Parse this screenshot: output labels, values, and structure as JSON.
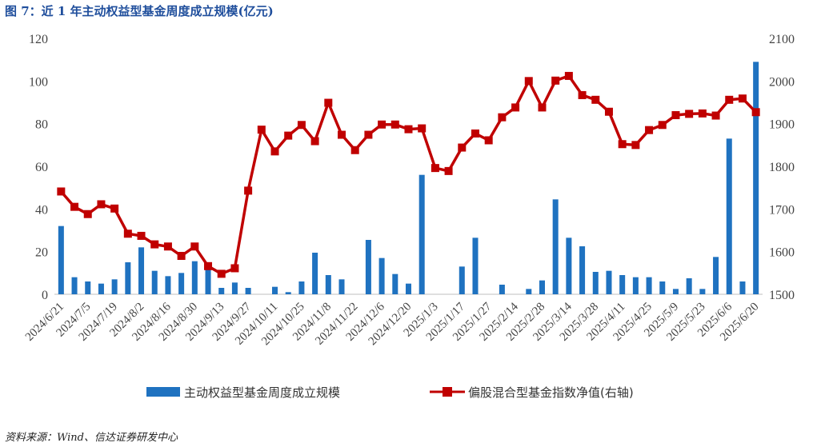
{
  "title": "图 7：近 1 年主动权益型基金周度成立规模(亿元)",
  "source": "资料来源：Wind、信达证券研发中心",
  "colors": {
    "bar": "#1f72c0",
    "line": "#c00000",
    "title": "#1f4e9c"
  },
  "chart_data": {
    "type": "bar+line",
    "x_tick_labels": [
      "2024/6/21",
      "2024/7/5",
      "2024/7/19",
      "2024/8/2",
      "2024/8/16",
      "2024/8/30",
      "2024/9/13",
      "2024/9/27",
      "2024/10/11",
      "2024/10/25",
      "2024/11/8",
      "2024/11/22",
      "2024/12/6",
      "2024/12/20",
      "2025/1/3",
      "2025/1/17",
      "2025/1/27",
      "2025/2/14",
      "2025/2/28",
      "2025/3/14",
      "2025/3/28",
      "2025/4/11",
      "2025/4/25",
      "2025/5/9",
      "2025/5/23",
      "2025/6/6",
      "2025/6/20"
    ],
    "left_axis": {
      "min": 0,
      "max": 120,
      "ticks": [
        0,
        20,
        40,
        60,
        80,
        100,
        120
      ]
    },
    "right_axis": {
      "min": 1500,
      "max": 2100,
      "ticks": [
        1500,
        1600,
        1700,
        1800,
        1900,
        2000,
        2100
      ]
    },
    "legend": [
      "主动权益型基金周度成立规模",
      "偏股混合型基金指数净值(右轴)"
    ],
    "legend_position": "bottom",
    "bars": [
      32,
      8,
      6,
      5,
      7,
      15,
      22,
      11,
      8.5,
      10,
      15.5,
      11.5,
      3,
      5.5,
      3,
      0,
      3.5,
      1,
      6,
      19.5,
      9,
      7,
      0,
      25.5,
      17,
      9.5,
      5,
      56,
      0,
      0,
      13,
      26.5,
      0,
      4.5,
      0,
      2.5,
      6.5,
      44.5,
      26.5,
      22.5,
      10.5,
      11,
      9,
      8,
      8,
      6,
      2.5,
      7.5,
      2.5,
      17.5,
      73,
      6,
      109
    ],
    "line": [
      1741,
      1705,
      1688,
      1711,
      1701,
      1642,
      1637,
      1617,
      1612,
      1590,
      1612,
      1566,
      1548,
      1561,
      1743,
      1886,
      1835,
      1872,
      1897,
      1859,
      1949,
      1874,
      1838,
      1874,
      1898,
      1898,
      1887,
      1889,
      1796,
      1789,
      1844,
      1877,
      1861,
      1915,
      1938,
      2000,
      1938,
      2001,
      2012,
      1967,
      1956,
      1928,
      1852,
      1850,
      1885,
      1897,
      1920,
      1923,
      1924,
      1919,
      1956,
      1959,
      1927
    ]
  }
}
